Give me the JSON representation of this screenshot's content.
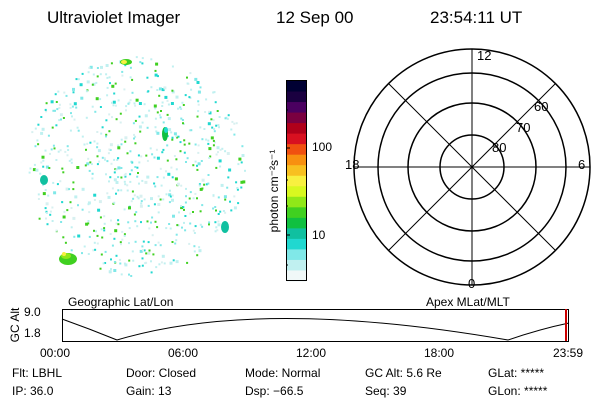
{
  "header": {
    "title": "Ultraviolet Imager",
    "date": "12 Sep 00",
    "time": "23:54:11 UT"
  },
  "colorbar": {
    "unit_label": "photon cm⁻²s⁻¹",
    "ticks": [
      "100",
      "10"
    ],
    "colors": [
      "#000033",
      "#1a0040",
      "#4a0060",
      "#7a0040",
      "#b0001a",
      "#d81020",
      "#f05010",
      "#f89010",
      "#f8c020",
      "#f8f040",
      "#d8f820",
      "#90e818",
      "#40d020",
      "#10c040",
      "#10c0a0",
      "#20d8d0",
      "#80e8e8",
      "#c0f0f0",
      "#f0f8f8"
    ]
  },
  "polar_plot": {
    "top_label": "12",
    "bottom_label": "0",
    "left_label": "18",
    "right_label": "6",
    "ring_labels": [
      "60",
      "70",
      "80"
    ]
  },
  "orbit_plot": {
    "left_title": "Geographic Lat/Lon",
    "right_title": "Apex MLat/MLT",
    "y_label": "GC Alt",
    "y_ticks": [
      "9.0",
      "1.8"
    ],
    "x_ticks": [
      "00:00",
      "06:00",
      "12:00",
      "18:00",
      "23:59"
    ],
    "current_marker_color": "#cc0000"
  },
  "status": {
    "flt": "Flt: LBHL",
    "door": "Door: Closed",
    "mode": "Mode: Normal",
    "gc_alt": "GC Alt: 5.6 Re",
    "glat": "GLat: *****",
    "ip": "IP: 36.0",
    "gain": "Gain: 13",
    "dsp": "Dsp:  −66.5",
    "seq": "Seq: 39",
    "glon": "GLon: *****"
  }
}
